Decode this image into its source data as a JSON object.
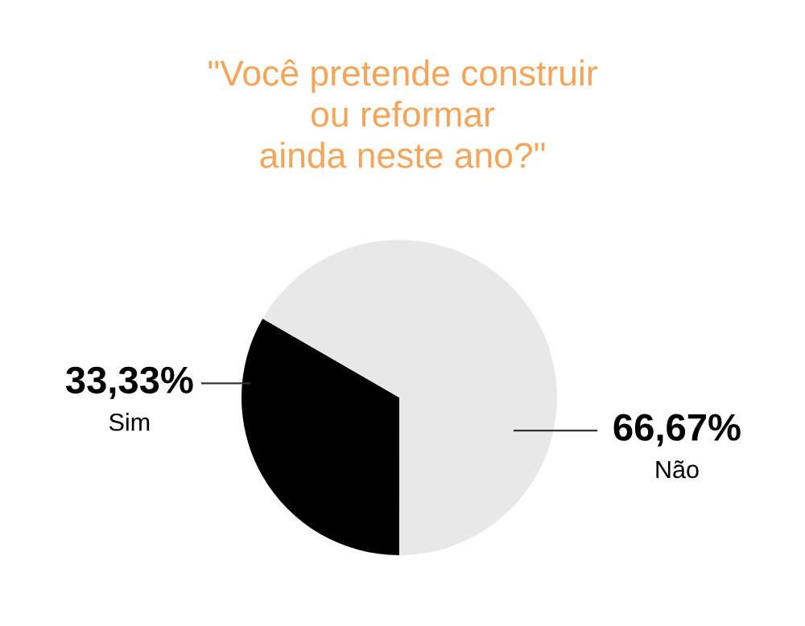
{
  "chart_data": {
    "type": "pie",
    "title": "\"Você pretende construir\nou reformar\nainda neste ano?\"",
    "categories": [
      "Sim",
      "Não"
    ],
    "values": [
      33.33,
      66.67
    ],
    "colors": [
      "#000000",
      "#e8e8e8"
    ],
    "value_labels": [
      "33,33%",
      "66,67%"
    ]
  }
}
